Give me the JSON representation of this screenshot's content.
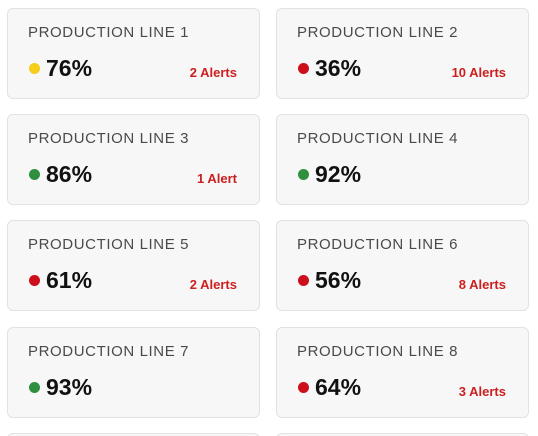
{
  "colors": {
    "yellow": "#f5cd1a",
    "red": "#cc0f1a",
    "green": "#2f8f3e",
    "alert_text": "#cc1f1f"
  },
  "lines": [
    {
      "title": "PRODUCTION LINE 1",
      "value": "76%",
      "status_color": "#f5cd1a",
      "alerts": "2 Alerts"
    },
    {
      "title": "PRODUCTION LINE 2",
      "value": "36%",
      "status_color": "#cc0f1a",
      "alerts": "10 Alerts"
    },
    {
      "title": "PRODUCTION LINE 3",
      "value": "86%",
      "status_color": "#2f8f3e",
      "alerts": "1 Alert"
    },
    {
      "title": "PRODUCTION LINE 4",
      "value": "92%",
      "status_color": "#2f8f3e",
      "alerts": ""
    },
    {
      "title": "PRODUCTION LINE 5",
      "value": "61%",
      "status_color": "#cc0f1a",
      "alerts": "2 Alerts"
    },
    {
      "title": "PRODUCTION LINE 6",
      "value": "56%",
      "status_color": "#cc0f1a",
      "alerts": "8 Alerts"
    },
    {
      "title": "PRODUCTION LINE 7",
      "value": "93%",
      "status_color": "#2f8f3e",
      "alerts": ""
    },
    {
      "title": "PRODUCTION LINE 8",
      "value": "64%",
      "status_color": "#cc0f1a",
      "alerts": "3 Alerts"
    }
  ]
}
